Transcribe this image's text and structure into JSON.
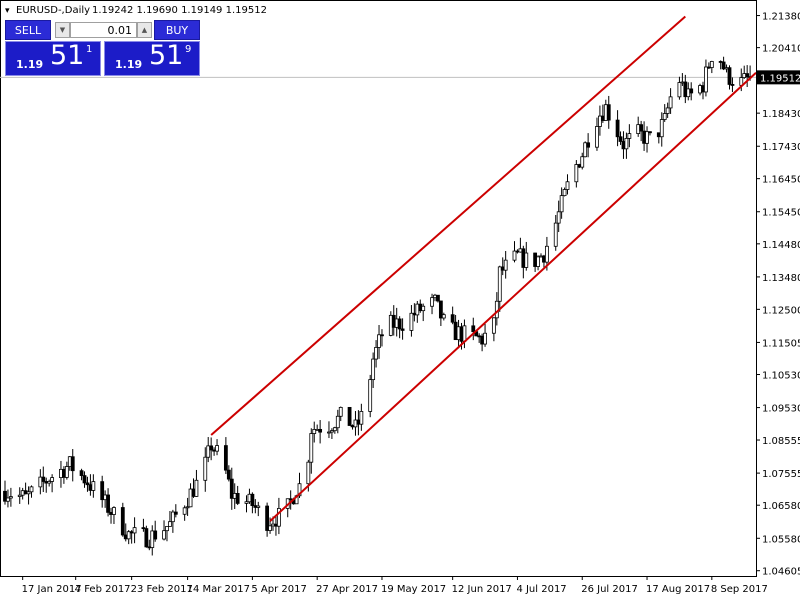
{
  "header": {
    "symbol": "EURUSD-,Daily",
    "ohlc": "1.19242 1.19690 1.19149 1.19512"
  },
  "trade_panel": {
    "sell_label": "SELL",
    "buy_label": "BUY",
    "lot_value": "0.01",
    "sell_price": {
      "prefix": "1.19",
      "big": "51",
      "sup": "1"
    },
    "buy_price": {
      "prefix": "1.19",
      "big": "51",
      "sup": "9"
    }
  },
  "colors": {
    "background": "#ffffff",
    "candle": "#000000",
    "channel": "#cc0000",
    "bid_line": "#c0c0c0",
    "button": "#2b2bd6",
    "price_box": "#1c1cc8"
  },
  "chart_data": {
    "type": "candlestick",
    "title": "",
    "current_price": 1.19512,
    "current_price_label": "1.19512",
    "ylim": [
      1.0444,
      1.2185
    ],
    "yticks": [
      {
        "value": 1.2138,
        "label": "1.21380"
      },
      {
        "value": 1.2041,
        "label": "1.20410"
      },
      {
        "value": 1.1843,
        "label": "1.18430"
      },
      {
        "value": 1.1743,
        "label": "1.17430"
      },
      {
        "value": 1.1645,
        "label": "1.16450"
      },
      {
        "value": 1.1545,
        "label": "1.15450"
      },
      {
        "value": 1.1448,
        "label": "1.14480"
      },
      {
        "value": 1.1348,
        "label": "1.13480"
      },
      {
        "value": 1.125,
        "label": "1.12500"
      },
      {
        "value": 1.115,
        "label": "1.11505"
      },
      {
        "value": 1.1053,
        "label": "1.10530"
      },
      {
        "value": 1.0953,
        "label": "1.09530"
      },
      {
        "value": 1.0855,
        "label": "1.08555"
      },
      {
        "value": 1.0755,
        "label": "1.07555"
      },
      {
        "value": 1.0658,
        "label": "1.06580"
      },
      {
        "value": 1.0558,
        "label": "1.05580"
      },
      {
        "value": 1.046,
        "label": "1.04605"
      }
    ],
    "xticks": [
      {
        "value": "2017-01-17",
        "label": "17 Jan 2017"
      },
      {
        "value": "2017-02-04",
        "label": "4 Feb 2017"
      },
      {
        "value": "2017-02-23",
        "label": "23 Feb 2017"
      },
      {
        "value": "2017-03-14",
        "label": "14 Mar 2017"
      },
      {
        "value": "2017-04-05",
        "label": "5 Apr 2017"
      },
      {
        "value": "2017-04-27",
        "label": "27 Apr 2017"
      },
      {
        "value": "2017-05-19",
        "label": "19 May 2017"
      },
      {
        "value": "2017-06-12",
        "label": "12 Jun 2017"
      },
      {
        "value": "2017-07-04",
        "label": "4 Jul 2017"
      },
      {
        "value": "2017-07-26",
        "label": "26 Jul 2017"
      },
      {
        "value": "2017-08-17",
        "label": "17 Aug 2017"
      },
      {
        "value": "2017-09-08",
        "label": "8 Sep 2017"
      }
    ],
    "channel_lines": [
      {
        "name": "upper",
        "start": {
          "x": "2017-03-22",
          "y": 1.087
        },
        "end": {
          "x": "2017-08-30",
          "y": 1.2135
        }
      },
      {
        "name": "lower",
        "start": {
          "x": "2017-04-11",
          "y": 1.061
        },
        "end": {
          "x": "2017-09-23",
          "y": 1.1965
        }
      }
    ],
    "path_anchors": [
      {
        "x": "2017-01-11",
        "y": 1.07
      },
      {
        "x": "2017-01-18",
        "y": 1.068
      },
      {
        "x": "2017-01-26",
        "y": 1.074
      },
      {
        "x": "2017-02-02",
        "y": 1.078
      },
      {
        "x": "2017-02-08",
        "y": 1.073
      },
      {
        "x": "2017-02-16",
        "y": 1.064
      },
      {
        "x": "2017-02-22",
        "y": 1.057
      },
      {
        "x": "2017-03-01",
        "y": 1.056
      },
      {
        "x": "2017-03-08",
        "y": 1.06
      },
      {
        "x": "2017-03-14",
        "y": 1.068
      },
      {
        "x": "2017-03-19",
        "y": 1.075
      },
      {
        "x": "2017-03-22",
        "y": 1.084
      },
      {
        "x": "2017-03-26",
        "y": 1.079
      },
      {
        "x": "2017-03-29",
        "y": 1.069
      },
      {
        "x": "2017-04-05",
        "y": 1.066
      },
      {
        "x": "2017-04-10",
        "y": 1.061
      },
      {
        "x": "2017-04-16",
        "y": 1.063
      },
      {
        "x": "2017-04-20",
        "y": 1.071
      },
      {
        "x": "2017-04-23",
        "y": 1.073
      },
      {
        "x": "2017-04-25",
        "y": 1.089
      },
      {
        "x": "2017-05-01",
        "y": 1.09
      },
      {
        "x": "2017-05-06",
        "y": 1.093
      },
      {
        "x": "2017-05-10",
        "y": 1.089
      },
      {
        "x": "2017-05-13",
        "y": 1.094
      },
      {
        "x": "2017-05-16",
        "y": 1.11
      },
      {
        "x": "2017-05-20",
        "y": 1.12
      },
      {
        "x": "2017-05-26",
        "y": 1.121
      },
      {
        "x": "2017-06-01",
        "y": 1.125
      },
      {
        "x": "2017-06-06",
        "y": 1.127
      },
      {
        "x": "2017-06-10",
        "y": 1.119
      },
      {
        "x": "2017-06-17",
        "y": 1.117
      },
      {
        "x": "2017-06-22",
        "y": 1.116
      },
      {
        "x": "2017-06-26",
        "y": 1.12
      },
      {
        "x": "2017-06-28",
        "y": 1.136
      },
      {
        "x": "2017-07-04",
        "y": 1.141
      },
      {
        "x": "2017-07-09",
        "y": 1.139
      },
      {
        "x": "2017-07-13",
        "y": 1.142
      },
      {
        "x": "2017-07-17",
        "y": 1.151
      },
      {
        "x": "2017-07-22",
        "y": 1.165
      },
      {
        "x": "2017-07-26",
        "y": 1.172
      },
      {
        "x": "2017-07-30",
        "y": 1.182
      },
      {
        "x": "2017-08-03",
        "y": 1.186
      },
      {
        "x": "2017-08-09",
        "y": 1.175
      },
      {
        "x": "2017-08-14",
        "y": 1.178
      },
      {
        "x": "2017-08-19",
        "y": 1.176
      },
      {
        "x": "2017-08-23",
        "y": 1.182
      },
      {
        "x": "2017-08-27",
        "y": 1.196
      },
      {
        "x": "2017-08-31",
        "y": 1.189
      },
      {
        "x": "2017-09-05",
        "y": 1.193
      },
      {
        "x": "2017-09-09",
        "y": 1.205
      },
      {
        "x": "2017-09-13",
        "y": 1.196
      },
      {
        "x": "2017-09-17",
        "y": 1.193
      },
      {
        "x": "2017-09-21",
        "y": 1.1951
      }
    ]
  }
}
